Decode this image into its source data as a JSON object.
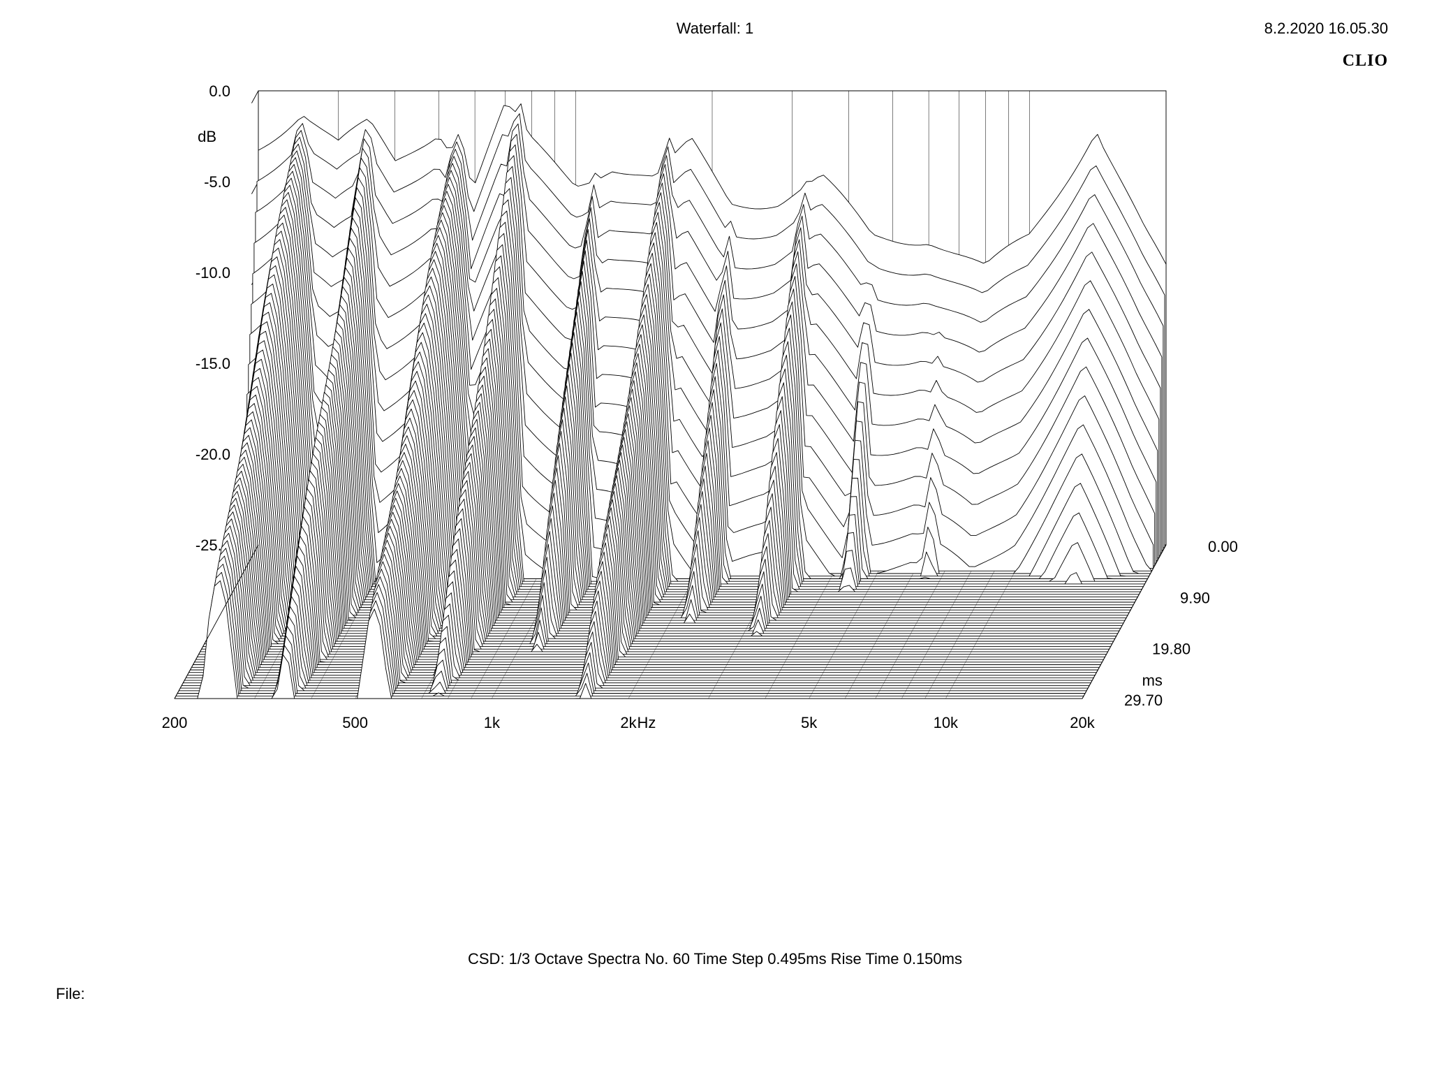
{
  "header": {
    "title": "Waterfall: 1",
    "date": "8.2.2020 16.05.30",
    "brand": "CLIO"
  },
  "footer": {
    "params": "CSD:   1/3 Octave   Spectra No. 60   Time Step 0.495ms   Rise Time 0.150ms",
    "file_label": "File:"
  },
  "chart": {
    "type": "waterfall-3d",
    "stroke_color": "#000000",
    "stroke_width": 0.9,
    "background_color": "#ffffff",
    "z_axis": {
      "label": "dB",
      "ticks": [
        "0.0",
        "-5.0",
        "-10.0",
        "-15.0",
        "-20.0",
        "-25.0"
      ],
      "min": -25.0,
      "max": 0.0
    },
    "x_axis": {
      "label": "Hz",
      "scale": "log",
      "ticks": [
        "200",
        "500",
        "1k",
        "2k",
        "5k",
        "10k",
        "20k"
      ],
      "min_hz": 200,
      "max_hz": 20000,
      "grid_lines_hz": [
        200,
        300,
        400,
        500,
        600,
        700,
        800,
        900,
        1000,
        2000,
        3000,
        4000,
        5000,
        6000,
        7000,
        8000,
        9000,
        10000,
        20000
      ]
    },
    "y_axis": {
      "label": "ms",
      "ticks": [
        "0.00",
        "9.90",
        "19.80",
        "29.70"
      ],
      "min": 0.0,
      "max": 29.7,
      "n_slices": 60
    },
    "geometry_comment": "3D isometric-like projection. Back wall vertical, floor slopes forward. Z tick labels on left; X tick labels along front floor edge; Y (time) tick labels on lower right.",
    "resonances_comment": "Peaks that persist longest (define ridge shapes) — freq in Hz, persist_to in ms, peak_db approx at t=0",
    "resonances": [
      {
        "hz": 250,
        "peak_db": -1,
        "persist_ms": 29,
        "width_oct": 0.5
      },
      {
        "hz": 350,
        "peak_db": -2,
        "persist_ms": 26,
        "width_oct": 0.4
      },
      {
        "hz": 550,
        "peak_db": -2,
        "persist_ms": 28,
        "width_oct": 0.5
      },
      {
        "hz": 750,
        "peak_db": -1,
        "persist_ms": 22,
        "width_oct": 0.35
      },
      {
        "hz": 1100,
        "peak_db": -4,
        "persist_ms": 18,
        "width_oct": 0.3
      },
      {
        "hz": 1600,
        "peak_db": -3,
        "persist_ms": 25,
        "width_oct": 0.35
      },
      {
        "hz": 2200,
        "peak_db": -6,
        "persist_ms": 14,
        "width_oct": 0.3
      },
      {
        "hz": 3200,
        "peak_db": -5,
        "persist_ms": 16,
        "width_oct": 0.3
      },
      {
        "hz": 4500,
        "peak_db": -8,
        "persist_ms": 10,
        "width_oct": 0.3
      },
      {
        "hz": 6500,
        "peak_db": -9,
        "persist_ms": 7,
        "width_oct": 0.4
      },
      {
        "hz": 14000,
        "peak_db": -2,
        "persist_ms": 2.5,
        "width_oct": 0.5
      }
    ],
    "initial_response_comment": "Approximate frequency response at t=0 (back-most slice), dB values",
    "initial_response": [
      [
        200,
        -3
      ],
      [
        250,
        -1
      ],
      [
        300,
        -3
      ],
      [
        350,
        -2
      ],
      [
        400,
        -4
      ],
      [
        500,
        -2
      ],
      [
        600,
        -5
      ],
      [
        700,
        -1
      ],
      [
        800,
        -3
      ],
      [
        1000,
        -5
      ],
      [
        1200,
        -4
      ],
      [
        1500,
        -5
      ],
      [
        1800,
        -3
      ],
      [
        2200,
        -6
      ],
      [
        2800,
        -6
      ],
      [
        3500,
        -5
      ],
      [
        4500,
        -8
      ],
      [
        6000,
        -8
      ],
      [
        8000,
        -10
      ],
      [
        10000,
        -8
      ],
      [
        14000,
        -2
      ],
      [
        18000,
        -8
      ],
      [
        20000,
        -10
      ]
    ]
  }
}
